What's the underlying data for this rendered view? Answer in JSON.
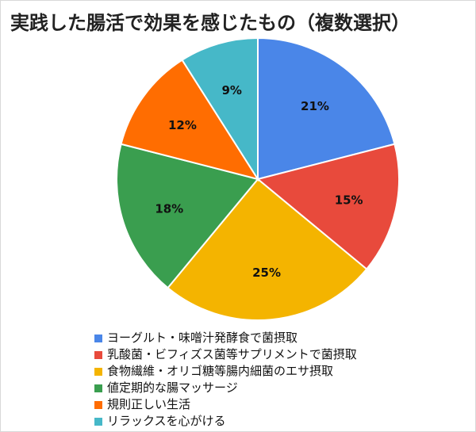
{
  "chart_data": {
    "type": "pie",
    "title": "実践した腸活で効果を感じたもの（複数選択）",
    "categories": [
      "ヨーグルト・味噌汁発酵食で菌摂取",
      "乳酸菌・ビフィズス菌等サプリメントで菌摂取",
      "食物繊維・オリゴ糖等腸内細菌のエサ摂取",
      "値定期的な腸マッサージ",
      "規則正しい生活",
      "リラックスを心がける"
    ],
    "values": [
      21,
      15,
      25,
      18,
      12,
      9
    ],
    "labels": [
      "21%",
      "15%",
      "25%",
      "18%",
      "12%",
      "9%"
    ],
    "colors": [
      "#4a86e8",
      "#e84a3c",
      "#f4b400",
      "#3a9e4f",
      "#ff6d01",
      "#46b8c8"
    ],
    "legend_position": "bottom"
  }
}
